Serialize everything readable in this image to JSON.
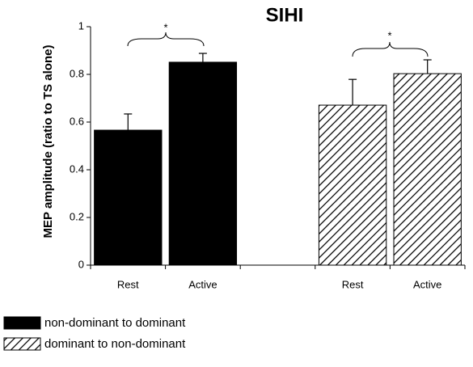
{
  "chart_data": {
    "type": "bar",
    "title": "SIHI",
    "y_label": "MEP amplitude (ratio to TS alone)",
    "categories": [
      "Rest",
      "Active",
      null,
      "Rest",
      "Active"
    ],
    "series": [
      {
        "name": "non-dominant to dominant",
        "color": "#000000",
        "hatch": false,
        "values": [
          0.566,
          0.851,
          null,
          null,
          null
        ],
        "errors": [
          0.068,
          0.037,
          null,
          null,
          null
        ]
      },
      {
        "name": "dominant to non-dominant",
        "color": "#000000",
        "hatch": true,
        "values": [
          null,
          null,
          null,
          0.671,
          0.803
        ],
        "errors": [
          null,
          null,
          null,
          0.108,
          0.058
        ]
      }
    ],
    "annotations": [
      "*",
      "*"
    ],
    "ylim": [
      0,
      1
    ],
    "yticks": [
      0,
      0.2,
      0.4,
      0.6,
      0.8,
      1
    ],
    "grid": false,
    "legend": "bottom-left"
  }
}
